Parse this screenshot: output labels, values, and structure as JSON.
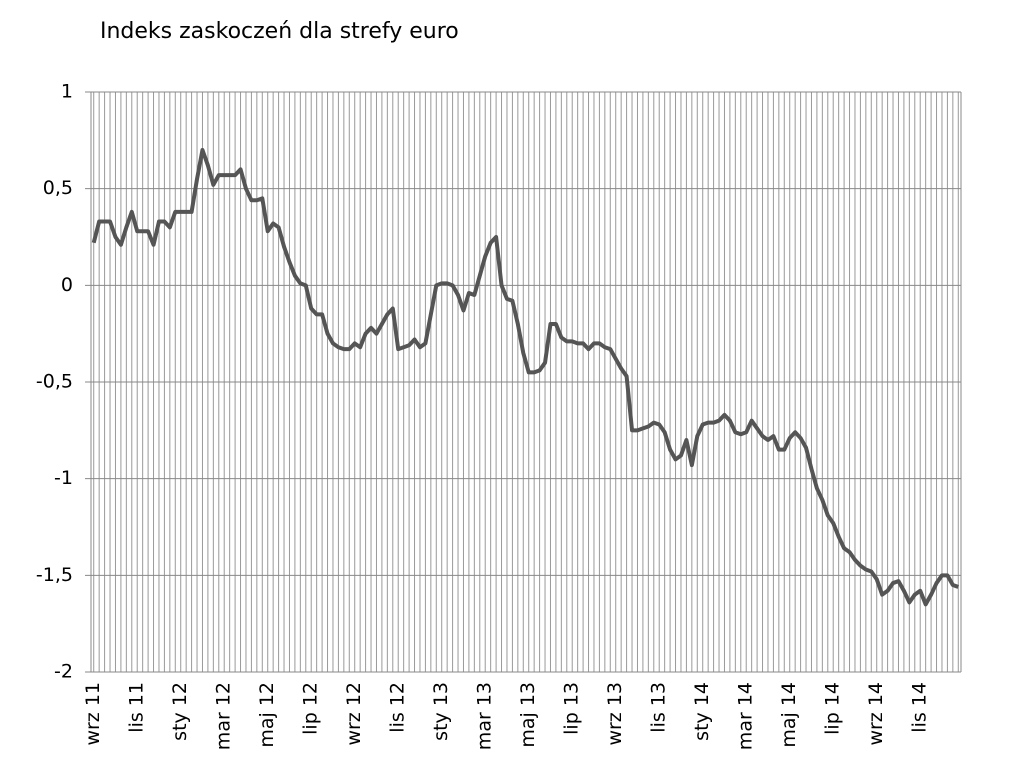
{
  "chart_data": {
    "type": "line",
    "title": "Indeks zaskoczeń dla strefy euro",
    "categories": [
      "wrz 11",
      null,
      null,
      null,
      null,
      null,
      null,
      null,
      "lis 11",
      null,
      null,
      null,
      null,
      null,
      null,
      null,
      "sty 12",
      null,
      null,
      null,
      null,
      null,
      null,
      null,
      "mar 12",
      null,
      null,
      null,
      null,
      null,
      null,
      null,
      "maj 12",
      null,
      null,
      null,
      null,
      null,
      null,
      null,
      "lip 12",
      null,
      null,
      null,
      null,
      null,
      null,
      null,
      "wrz 12",
      null,
      null,
      null,
      null,
      null,
      null,
      null,
      "lis 12",
      null,
      null,
      null,
      null,
      null,
      null,
      null,
      "sty 13",
      null,
      null,
      null,
      null,
      null,
      null,
      null,
      "mar 13",
      null,
      null,
      null,
      null,
      null,
      null,
      null,
      "maj 13",
      null,
      null,
      null,
      null,
      null,
      null,
      null,
      "lip 13",
      null,
      null,
      null,
      null,
      null,
      null,
      null,
      "wrz 13",
      null,
      null,
      null,
      null,
      null,
      null,
      null,
      "lis 13",
      null,
      null,
      null,
      null,
      null,
      null,
      null,
      "sty 14",
      null,
      null,
      null,
      null,
      null,
      null,
      null,
      "mar 14",
      null,
      null,
      null,
      null,
      null,
      null,
      null,
      "maj 14",
      null,
      null,
      null,
      null,
      null,
      null,
      null,
      "lip 14",
      null,
      null,
      null,
      null,
      null,
      null,
      null,
      "wrz 14",
      null,
      null,
      null,
      null,
      null,
      null,
      null,
      "lis 14",
      null,
      null,
      null,
      null,
      null,
      null,
      null
    ],
    "series": [
      {
        "color": "#555555",
        "values": [
          0.22,
          0.33,
          0.33,
          0.33,
          0.25,
          0.21,
          0.3,
          0.38,
          0.28,
          0.28,
          0.28,
          0.21,
          0.33,
          0.33,
          0.3,
          0.38,
          0.38,
          0.38,
          0.38,
          0.55,
          0.7,
          0.62,
          0.52,
          0.57,
          0.57,
          0.57,
          0.57,
          0.6,
          0.5,
          0.44,
          0.44,
          0.45,
          0.28,
          0.32,
          0.3,
          0.2,
          0.12,
          0.05,
          0.01,
          0.0,
          -0.12,
          -0.15,
          -0.15,
          -0.25,
          -0.3,
          -0.32,
          -0.33,
          -0.33,
          -0.3,
          -0.32,
          -0.25,
          -0.22,
          -0.25,
          -0.2,
          -0.15,
          -0.12,
          -0.33,
          -0.32,
          -0.31,
          -0.28,
          -0.32,
          -0.3,
          -0.15,
          0.0,
          0.01,
          0.01,
          0.0,
          -0.05,
          -0.13,
          -0.04,
          -0.05,
          0.05,
          0.15,
          0.22,
          0.25,
          0.0,
          -0.07,
          -0.08,
          -0.2,
          -0.35,
          -0.45,
          -0.45,
          -0.44,
          -0.4,
          -0.2,
          -0.2,
          -0.27,
          -0.29,
          -0.29,
          -0.3,
          -0.3,
          -0.33,
          -0.3,
          -0.3,
          -0.32,
          -0.33,
          -0.38,
          -0.43,
          -0.47,
          -0.75,
          -0.75,
          -0.74,
          -0.73,
          -0.71,
          -0.72,
          -0.76,
          -0.85,
          -0.9,
          -0.88,
          -0.8,
          -0.93,
          -0.78,
          -0.72,
          -0.71,
          -0.71,
          -0.7,
          -0.67,
          -0.7,
          -0.76,
          -0.77,
          -0.76,
          -0.7,
          -0.74,
          -0.78,
          -0.8,
          -0.78,
          -0.85,
          -0.85,
          -0.79,
          -0.76,
          -0.79,
          -0.84,
          -0.95,
          -1.05,
          -1.11,
          -1.19,
          -1.23,
          -1.3,
          -1.36,
          -1.38,
          -1.42,
          -1.45,
          -1.47,
          -1.48,
          -1.52,
          -1.6,
          -1.58,
          -1.54,
          -1.53,
          -1.58,
          -1.64,
          -1.6,
          -1.58,
          -1.65,
          -1.6,
          -1.54,
          -1.5,
          -1.5,
          -1.55,
          -1.56
        ]
      }
    ],
    "ylim": [
      -2,
      1
    ],
    "yticks": [
      -2,
      {
        "value": -1.5,
        "label": "-1,5"
      },
      -1,
      {
        "value": -0.5,
        "label": "-0,5"
      },
      0,
      {
        "value": 0.5,
        "label": "0,5"
      },
      1
    ],
    "grid": true
  }
}
